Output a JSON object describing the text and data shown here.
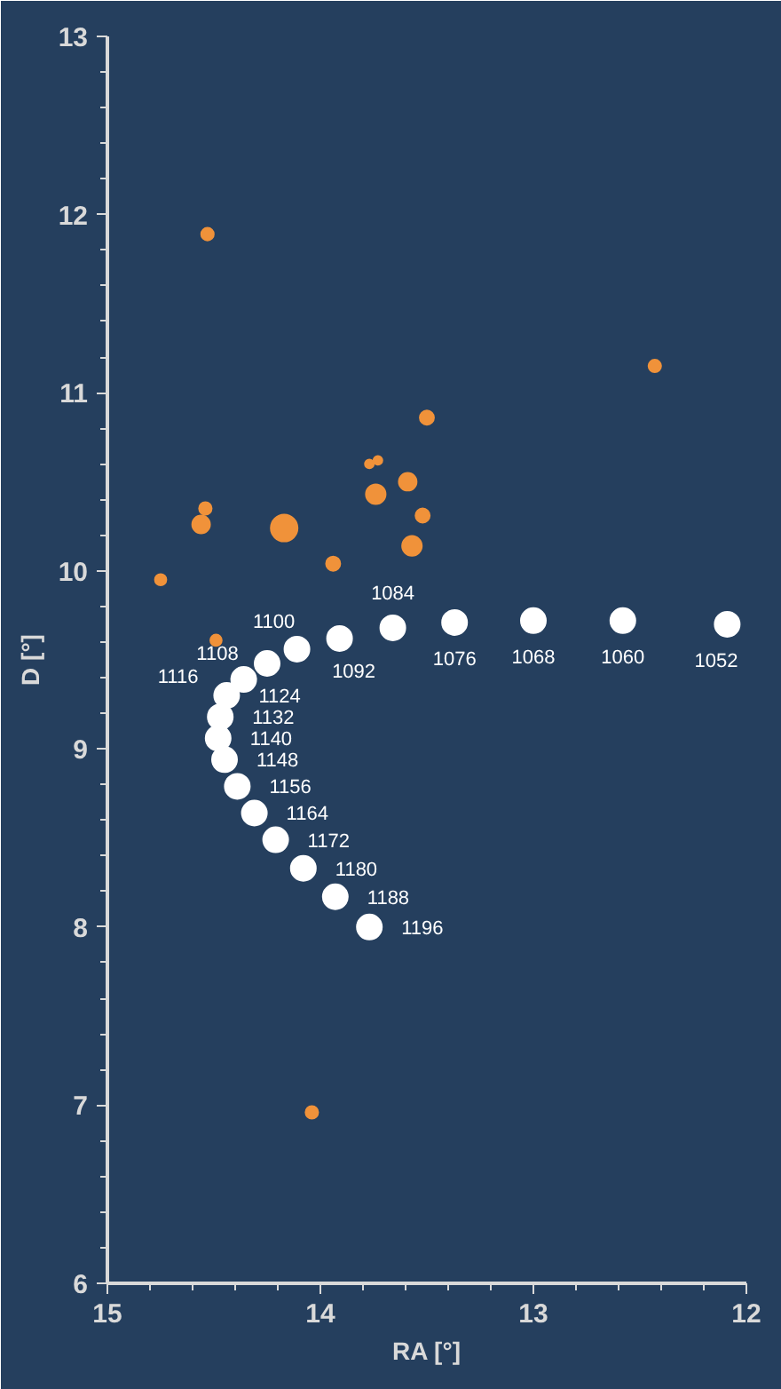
{
  "chart_data": {
    "type": "bubble",
    "xlabel": "RA [°]",
    "ylabel": "D [°]",
    "xlim": [
      15,
      12
    ],
    "ylim": [
      6,
      13
    ],
    "xticks": [
      15,
      14,
      13,
      12
    ],
    "yticks": [
      6,
      7,
      8,
      9,
      10,
      11,
      12,
      13
    ],
    "grid": false,
    "marker": "circle",
    "series": [
      {
        "color": "#f0923a",
        "x": [
          12.43,
          13.5,
          13.77,
          13.73,
          13.59,
          13.74,
          13.52,
          13.57,
          14.17,
          13.94,
          14.54,
          14.56,
          14.75,
          14.53,
          14.49,
          14.04
        ],
        "values": [
          11.15,
          10.86,
          10.6,
          10.62,
          10.5,
          10.43,
          10.31,
          10.14,
          10.24,
          10.04,
          10.35,
          10.26,
          9.95,
          11.89,
          9.61,
          6.96
        ],
        "sizes": [
          0.22,
          0.28,
          0.11,
          0.11,
          0.44,
          0.54,
          0.28,
          0.54,
          1,
          0.28,
          0.22,
          0.44,
          0.18,
          0.22,
          0.18,
          0.22
        ]
      },
      {
        "type": "scatter",
        "color": "#ffffff",
        "x": [
          12.09,
          12.58,
          13.0,
          13.37,
          13.66,
          13.91,
          14.11,
          14.25,
          14.36,
          14.44,
          14.47,
          14.48,
          14.45,
          14.39,
          14.31,
          14.21,
          14.08,
          13.93,
          13.77
        ],
        "values": [
          9.7,
          9.72,
          9.72,
          9.71,
          9.68,
          9.62,
          9.56,
          9.48,
          9.39,
          9.3,
          9.18,
          9.06,
          8.94,
          8.79,
          8.64,
          8.49,
          8.33,
          8.17,
          8.0
        ]
      }
    ],
    "annotations": [
      {
        "text": "1052",
        "x": 12.09,
        "y": 9.7
      },
      {
        "text": "1060",
        "x": 12.58,
        "y": 9.72
      },
      {
        "text": "1068",
        "x": 13.0,
        "y": 9.72
      },
      {
        "text": "1076",
        "x": 13.37,
        "y": 9.71
      },
      {
        "text": "1084",
        "x": 13.66,
        "y": 9.68
      },
      {
        "text": "1092",
        "x": 13.91,
        "y": 9.62
      },
      {
        "text": "1100",
        "x": 14.11,
        "y": 9.56
      },
      {
        "text": "1108",
        "x": 14.25,
        "y": 9.48
      },
      {
        "text": "1116",
        "x": 14.36,
        "y": 9.39
      },
      {
        "text": "1124",
        "x": 14.44,
        "y": 9.3
      },
      {
        "text": "1132",
        "x": 14.47,
        "y": 9.18
      },
      {
        "text": "1140",
        "x": 14.48,
        "y": 9.06
      },
      {
        "text": "1148",
        "x": 14.45,
        "y": 8.94
      },
      {
        "text": "1156",
        "x": 14.39,
        "y": 8.79
      },
      {
        "text": "1164",
        "x": 14.31,
        "y": 8.64
      },
      {
        "text": "1172",
        "x": 14.21,
        "y": 8.49
      },
      {
        "text": "1180",
        "x": 14.08,
        "y": 8.33
      },
      {
        "text": "1188",
        "x": 13.93,
        "y": 8.17
      },
      {
        "text": "1196",
        "x": 13.77,
        "y": 8.0
      }
    ]
  }
}
